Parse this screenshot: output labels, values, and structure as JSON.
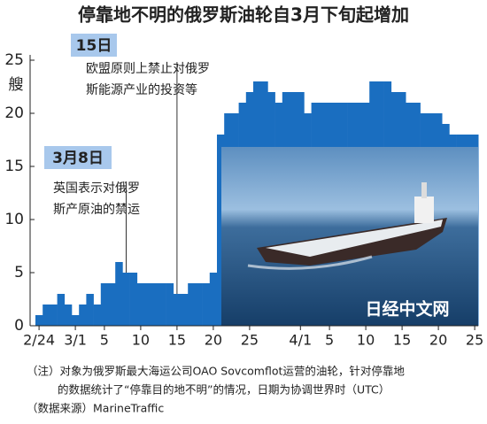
{
  "chart_data": {
    "type": "bar",
    "title": "停靠地不明的俄罗斯油轮自3月下旬起增加",
    "y_unit": "艘",
    "categories": [
      "2/24",
      null,
      null,
      null,
      null,
      "3/1",
      null,
      null,
      null,
      "5",
      null,
      null,
      null,
      null,
      "10",
      null,
      null,
      null,
      null,
      "15",
      null,
      null,
      null,
      null,
      "20",
      null,
      null,
      null,
      null,
      "25",
      null,
      null,
      null,
      null,
      null,
      null,
      "4/1",
      null,
      null,
      null,
      "5",
      null,
      null,
      null,
      null,
      "10",
      null,
      null,
      null,
      null,
      "15",
      null,
      null,
      null,
      null,
      "20",
      null,
      null,
      null,
      null,
      "25"
    ],
    "values": [
      1,
      2,
      2,
      3,
      2,
      1,
      2,
      3,
      2,
      4,
      4,
      6,
      5,
      5,
      4,
      4,
      4,
      4,
      4,
      3,
      3,
      4,
      4,
      4,
      5,
      18,
      20,
      20,
      21,
      22,
      23,
      23,
      22,
      21,
      22,
      22,
      22,
      20,
      21,
      21,
      21,
      21,
      21,
      21,
      21,
      21,
      23,
      23,
      23,
      22,
      22,
      21,
      21,
      20,
      20,
      20,
      19,
      18,
      18,
      18,
      18
    ],
    "color": "#1a6ec0",
    "ylim": [
      0,
      25
    ],
    "yticks": [
      0,
      5,
      10,
      15,
      20,
      25
    ],
    "annotations": [
      {
        "date": "15日",
        "lines": [
          "欧盟原则上禁止对俄罗",
          "斯能源产业的投资等"
        ]
      },
      {
        "date": "3月8日",
        "lines": [
          "英国表示对俄罗",
          "斯产原油的禁运"
        ]
      }
    ],
    "watermark": "日经中文网",
    "notes": [
      "（注）对象为俄罗斯最大海运公司OAO Sovcomflot运营的油轮，针对停靠地",
      "的数据统计了“停靠目的地不明”的情况，日期为协调世界时（UTC）",
      "（数据来源）MarineTraffic"
    ]
  }
}
